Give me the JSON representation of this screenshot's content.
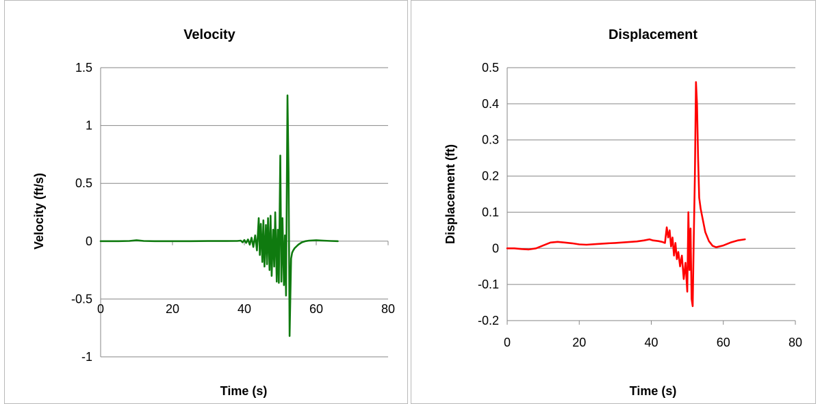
{
  "chart_data": [
    {
      "type": "line",
      "title": "Velocity",
      "xlabel": "Time (s)",
      "ylabel": "Velocity (ft/s)",
      "xlim": [
        0,
        80
      ],
      "ylim": [
        -1,
        1.5
      ],
      "x_ticks": [
        0,
        20,
        40,
        60,
        80
      ],
      "y_ticks": [
        -1,
        -0.5,
        0,
        0.5,
        1,
        1.5
      ],
      "x_tick_labels": [
        "0",
        "20",
        "40",
        "60",
        "80"
      ],
      "y_tick_labels": [
        "-1",
        "-0.5",
        "0",
        "0.5",
        "1",
        "1.5"
      ],
      "grid": "horizontal",
      "legend": "none",
      "color": "#0f7a0f",
      "series": [
        {
          "x": [
            0,
            5,
            8,
            10,
            12,
            15,
            20,
            25,
            30,
            35,
            38,
            39,
            39.5,
            40,
            40.5,
            41,
            41.5,
            42,
            42.5,
            43,
            43.5,
            44,
            44.3,
            44.6,
            45,
            45.3,
            45.6,
            46,
            46.3,
            46.6,
            47,
            47.3,
            47.6,
            48,
            48.3,
            48.6,
            49,
            49.3,
            49.6,
            50,
            50.3,
            50.6,
            51,
            51.3,
            51.6,
            52,
            52.3,
            52.6,
            53,
            53.3,
            53.6,
            54,
            55,
            56,
            57,
            58,
            60,
            62,
            64,
            66
          ],
          "y": [
            0,
            0,
            0.002,
            0.008,
            0.002,
            0,
            0,
            0,
            0.001,
            0.001,
            0.002,
            0.005,
            -0.01,
            0.01,
            -0.015,
            0.015,
            -0.03,
            0.03,
            -0.05,
            0.05,
            -0.08,
            0.2,
            -0.12,
            0.15,
            -0.18,
            0.18,
            -0.22,
            0.14,
            -0.2,
            0.2,
            -0.25,
            0.22,
            -0.3,
            0.1,
            -0.22,
            0.25,
            -0.35,
            0.1,
            -0.36,
            0.74,
            -0.35,
            0.2,
            -0.38,
            0.05,
            -0.47,
            1.26,
            0.6,
            -0.82,
            -0.15,
            -0.1,
            -0.08,
            -0.06,
            -0.03,
            -0.01,
            0,
            0.005,
            0.008,
            0.005,
            0.002,
            0
          ]
        }
      ]
    },
    {
      "type": "line",
      "title": "Displacement",
      "xlabel": "Time (s)",
      "ylabel": "Displacement (ft)",
      "xlim": [
        0,
        80
      ],
      "ylim": [
        -0.2,
        0.5
      ],
      "x_ticks": [
        0,
        20,
        40,
        60,
        80
      ],
      "y_ticks": [
        -0.2,
        -0.1,
        0,
        0.1,
        0.2,
        0.3,
        0.4,
        0.5
      ],
      "x_tick_labels": [
        "0",
        "20",
        "40",
        "60",
        "80"
      ],
      "y_tick_labels": [
        "-0.2",
        "-0.1",
        "0",
        "0.1",
        "0.2",
        "0.3",
        "0.4",
        "0.5"
      ],
      "grid": "horizontal",
      "legend": "none",
      "color": "#ff0000",
      "series": [
        {
          "x": [
            0,
            2,
            4,
            6,
            8,
            10,
            12,
            14,
            16,
            18,
            20,
            22,
            25,
            28,
            30,
            33,
            36,
            38,
            39.5,
            40.5,
            42,
            43,
            43.8,
            44.3,
            44.7,
            45.1,
            45.5,
            45.9,
            46.3,
            46.7,
            47.1,
            47.5,
            48,
            48.5,
            49,
            49.5,
            50,
            50.3,
            50.6,
            50.9,
            51.2,
            51.5,
            51.8,
            52.1,
            52.4,
            52.7,
            53,
            53.3,
            53.7,
            54.2,
            55,
            56,
            57,
            58,
            60,
            62,
            64,
            66
          ],
          "y": [
            0,
            0,
            -0.002,
            -0.003,
            0,
            0.008,
            0.016,
            0.018,
            0.016,
            0.014,
            0.011,
            0.01,
            0.012,
            0.014,
            0.015,
            0.017,
            0.019,
            0.022,
            0.025,
            0.022,
            0.02,
            0.018,
            0.015,
            0.058,
            0.03,
            0.05,
            0.005,
            0.03,
            -0.02,
            0.015,
            -0.03,
            -0.01,
            -0.05,
            -0.02,
            -0.085,
            -0.04,
            -0.12,
            0.1,
            -0.06,
            0.055,
            -0.14,
            -0.16,
            0.03,
            0.2,
            0.46,
            0.4,
            0.25,
            0.14,
            0.11,
            0.085,
            0.045,
            0.02,
            0.007,
            0.003,
            0.008,
            0.016,
            0.022,
            0.025
          ]
        }
      ]
    }
  ]
}
